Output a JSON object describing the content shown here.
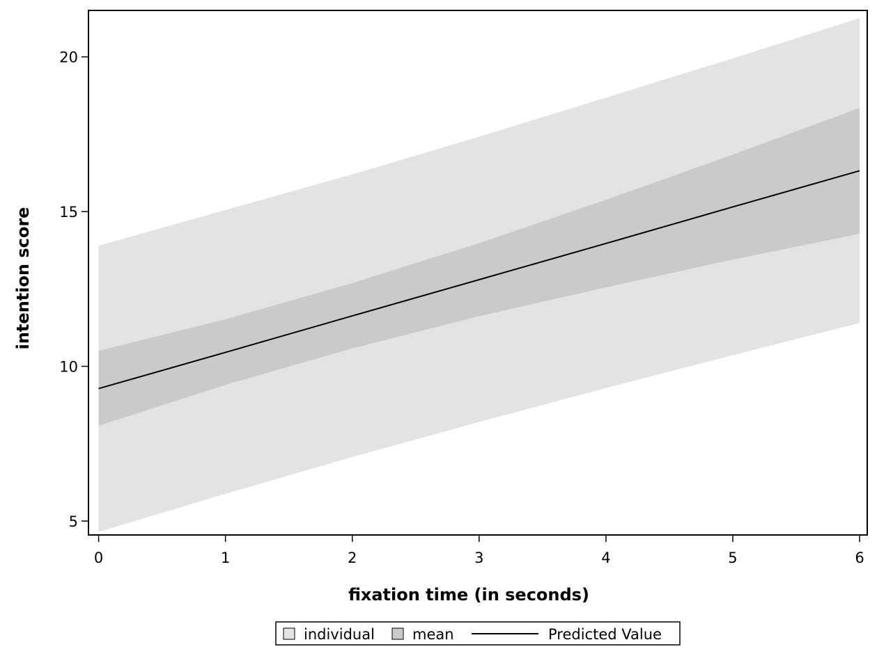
{
  "chart_data": {
    "type": "line",
    "title": "",
    "xlabel": "fixation time (in seconds)",
    "ylabel": "intention score",
    "xlim": [
      -0.08,
      6.06
    ],
    "ylim": [
      4.55,
      21.5
    ],
    "x_ticks": [
      {
        "value": 0,
        "label": "0"
      },
      {
        "value": 1,
        "label": "1"
      },
      {
        "value": 2,
        "label": "2"
      },
      {
        "value": 3,
        "label": "3"
      },
      {
        "value": 4,
        "label": "4"
      },
      {
        "value": 5,
        "label": "5"
      },
      {
        "value": 6,
        "label": "6"
      }
    ],
    "y_ticks": [
      {
        "value": 5,
        "label": "5"
      },
      {
        "value": 10,
        "label": "10"
      },
      {
        "value": 15,
        "label": "15"
      },
      {
        "value": 20,
        "label": "20"
      }
    ],
    "x": [
      0,
      1,
      2,
      3,
      4,
      5,
      6
    ],
    "series": [
      {
        "name": "Predicted Value",
        "kind": "line",
        "color": "#000000",
        "values": [
          9.28,
          10.45,
          11.63,
          12.8,
          13.97,
          15.15,
          16.32
        ]
      }
    ],
    "bands": [
      {
        "name": "individual",
        "color": "#e3e3e3",
        "lower": [
          4.65,
          5.88,
          7.07,
          8.2,
          9.3,
          10.36,
          11.4
        ],
        "upper": [
          13.9,
          15.05,
          16.2,
          17.42,
          18.68,
          19.95,
          21.25
        ]
      },
      {
        "name": "mean",
        "color": "#cacaca",
        "lower": [
          8.08,
          9.4,
          10.58,
          11.62,
          12.55,
          13.45,
          14.28
        ],
        "upper": [
          10.5,
          11.52,
          12.69,
          13.98,
          15.38,
          16.84,
          18.35
        ]
      }
    ],
    "grid": false,
    "legend": {
      "position": "bottom-center",
      "items": [
        {
          "label": "individual",
          "kind": "band",
          "ref": "individual"
        },
        {
          "label": "mean",
          "kind": "band",
          "ref": "mean"
        },
        {
          "label": "Predicted Value",
          "kind": "line",
          "ref": "Predicted Value"
        }
      ]
    },
    "colors": {
      "frame": "#000000",
      "background": "#ffffff"
    }
  }
}
